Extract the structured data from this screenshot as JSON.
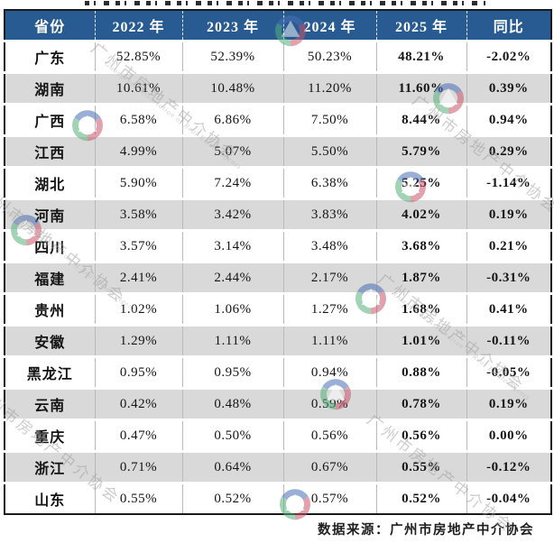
{
  "chart_data": {
    "type": "table",
    "columns": [
      "省份",
      "2022 年",
      "2023 年",
      "2024 年",
      "2025 年",
      "同比"
    ],
    "rows": [
      [
        "广东",
        "52.85%",
        "52.39%",
        "50.23%",
        "48.21%",
        "-2.02%"
      ],
      [
        "湖南",
        "10.61%",
        "10.48%",
        "11.20%",
        "11.60%",
        "0.39%"
      ],
      [
        "广西",
        "6.58%",
        "6.86%",
        "7.50%",
        "8.44%",
        "0.94%"
      ],
      [
        "江西",
        "4.99%",
        "5.07%",
        "5.50%",
        "5.79%",
        "0.29%"
      ],
      [
        "湖北",
        "5.90%",
        "7.24%",
        "6.38%",
        "5.25%",
        "-1.14%"
      ],
      [
        "河南",
        "3.58%",
        "3.42%",
        "3.83%",
        "4.02%",
        "0.19%"
      ],
      [
        "四川",
        "3.57%",
        "3.14%",
        "3.48%",
        "3.68%",
        "0.21%"
      ],
      [
        "福建",
        "2.41%",
        "2.44%",
        "2.17%",
        "1.87%",
        "-0.31%"
      ],
      [
        "贵州",
        "1.02%",
        "1.06%",
        "1.27%",
        "1.68%",
        "0.41%"
      ],
      [
        "安徽",
        "1.29%",
        "1.11%",
        "1.11%",
        "1.01%",
        "-0.11%"
      ],
      [
        "黑龙江",
        "0.95%",
        "0.95%",
        "0.94%",
        "0.88%",
        "-0.05%"
      ],
      [
        "云南",
        "0.42%",
        "0.48%",
        "0.59%",
        "0.78%",
        "0.19%"
      ],
      [
        "重庆",
        "0.47%",
        "0.50%",
        "0.56%",
        "0.56%",
        "0.00%"
      ],
      [
        "浙江",
        "0.71%",
        "0.64%",
        "0.67%",
        "0.55%",
        "-0.12%"
      ],
      [
        "山东",
        "0.55%",
        "0.52%",
        "0.57%",
        "0.52%",
        "-0.04%"
      ]
    ],
    "units": "%",
    "layout_hints": {
      "header_style": "blue band, white bold text",
      "zebra_striping": "odd data rows gray",
      "bold_columns": [
        "2025 年",
        "同比"
      ]
    }
  },
  "footer": {
    "source": "数据来源：广州市房地产中介协会"
  },
  "watermark": {
    "org_cn": "广州市房地产中介协会",
    "org_en": "Guangzhou Association of Real Estate Agents"
  },
  "colors": {
    "header_bg": "#275B92",
    "header_text": "#FFFFFF",
    "row_alt_gray": "#D9D9D9",
    "grid_line": "#B9B9B9",
    "outer_border": "#1A1A1A",
    "logo_blue": "#4A6FB5",
    "logo_red": "#C9556B",
    "logo_green": "#55B07A"
  }
}
